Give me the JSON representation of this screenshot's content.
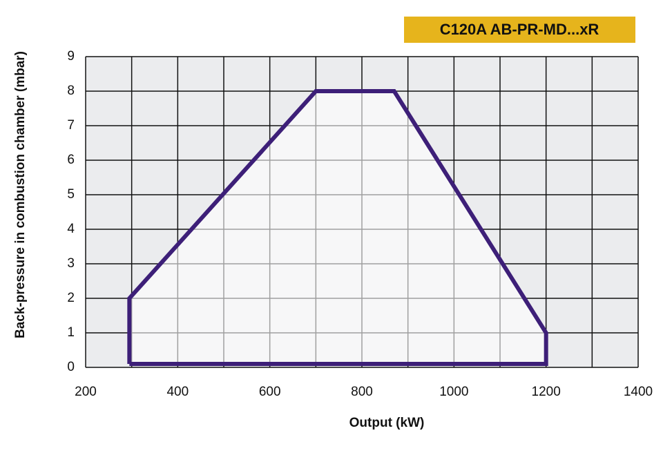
{
  "chart_data": {
    "type": "area",
    "title": "C120A AB-PR-MD...xR",
    "x_label": "Output (kW)",
    "y_label": "Back-pressure in combustion chamber (mbar)",
    "x": [
      295,
      295,
      700,
      870,
      1200,
      1200,
      295
    ],
    "values": [
      0.1,
      2,
      8,
      8,
      1,
      0.1,
      0.1
    ],
    "color": "#3d1f78",
    "xlim": [
      200,
      1400
    ],
    "xticks": [
      200,
      400,
      600,
      800,
      1000,
      1200,
      1400
    ],
    "ylim": [
      0,
      9
    ],
    "yticks": [
      0,
      1,
      2,
      3,
      4,
      5,
      6,
      7,
      8,
      9
    ],
    "grid": true
  }
}
